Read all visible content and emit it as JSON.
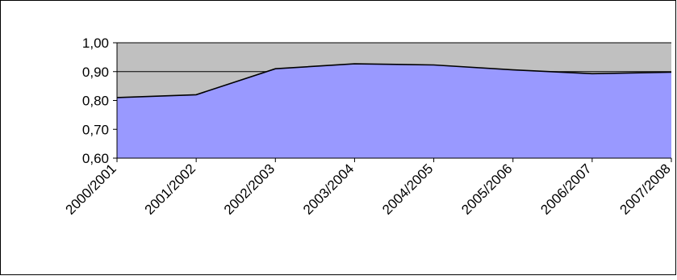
{
  "chart_data": {
    "type": "area",
    "categories": [
      "2000/2001",
      "2001/2002",
      "2002/2003",
      "2003/2004",
      "2004/2005",
      "2005/2006",
      "2006/2007",
      "2007/2008"
    ],
    "series": [
      {
        "values": [
          0.81,
          0.82,
          0.91,
          0.927,
          0.923,
          0.906,
          0.893,
          0.898
        ]
      }
    ],
    "ylim": [
      0.6,
      1.0
    ],
    "yticks": [
      "0,60",
      "0,70",
      "0,80",
      "0,90",
      "1,00"
    ],
    "grid": true,
    "legend": "none",
    "colors": {
      "plot_background": "#c0c0c0",
      "area_fill": "#9999ff",
      "line": "#000000",
      "gridline": "#000000",
      "chart_border": "#000000"
    }
  }
}
